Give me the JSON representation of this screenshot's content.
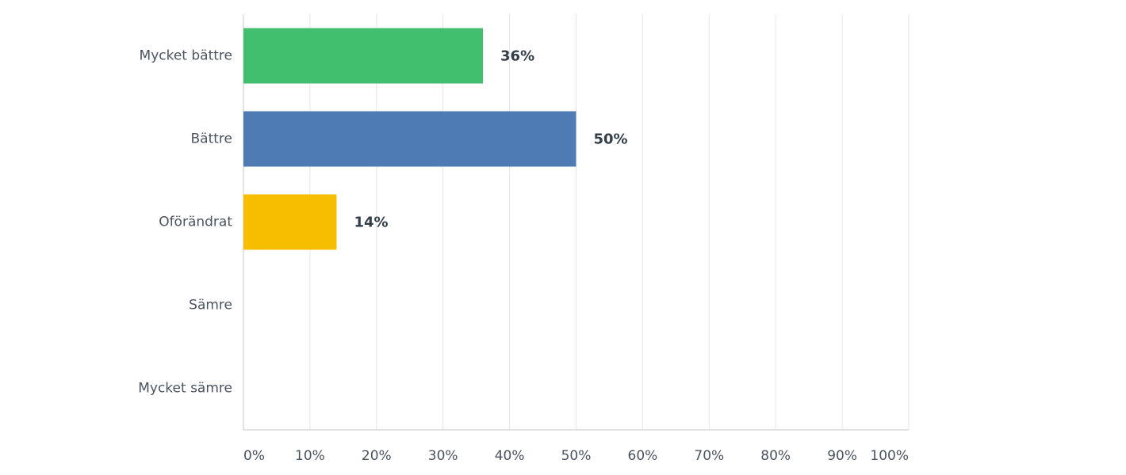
{
  "chart_data": {
    "type": "hbar",
    "categories": [
      "Mycket bättre",
      "Bättre",
      "Oförändrat",
      "Sämre",
      "Mycket sämre"
    ],
    "values": [
      36,
      50,
      14,
      0,
      0
    ],
    "value_labels": [
      "36%",
      "50%",
      "14%",
      null,
      null
    ],
    "colors": [
      "#41bf6e",
      "#4e7bb4",
      "#f7be00",
      "#888888",
      "#888888"
    ],
    "xlim": [
      0,
      100
    ],
    "xticks": [
      {
        "value": 0,
        "label": "0%"
      },
      {
        "value": 10,
        "label": "10%"
      },
      {
        "value": 20,
        "label": "20%"
      },
      {
        "value": 30,
        "label": "30%"
      },
      {
        "value": 40,
        "label": "40%"
      },
      {
        "value": 50,
        "label": "50%"
      },
      {
        "value": 60,
        "label": "60%"
      },
      {
        "value": 70,
        "label": "70%"
      },
      {
        "value": 80,
        "label": "80%"
      },
      {
        "value": 90,
        "label": "90%"
      },
      {
        "value": 100,
        "label": "100%"
      }
    ],
    "grid": true
  }
}
